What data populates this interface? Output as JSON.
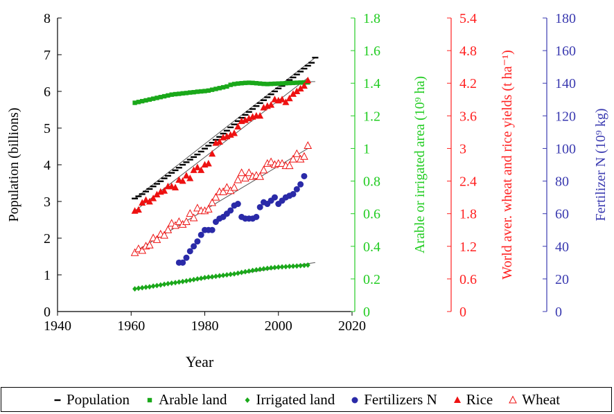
{
  "chart_data": {
    "type": "scatter",
    "xlabel": "Year",
    "xlim": [
      1940,
      2020
    ],
    "x_ticks": [
      "1940",
      "1960",
      "1980",
      "2000",
      "2020"
    ],
    "axes": [
      {
        "id": "population",
        "label": "Population (billions)",
        "color": "#000000",
        "lim": [
          0,
          8
        ],
        "ticks": [
          "0",
          "1",
          "2",
          "3",
          "4",
          "5",
          "6",
          "7",
          "8"
        ]
      },
      {
        "id": "area",
        "label": "Arable or irrigated area (10⁹ ha)",
        "color": "#22cc22",
        "lim": [
          0,
          1.8
        ],
        "ticks": [
          "0",
          "0.2",
          "0.4",
          "0.6",
          "0.8",
          "1",
          "1.2",
          "1.4",
          "1.6",
          "1.8"
        ]
      },
      {
        "id": "yield",
        "label": "World aver. wheat and rice yields (t ha⁻¹)",
        "color": "#ff2020",
        "lim": [
          0,
          5.4
        ],
        "ticks": [
          "0",
          "0.6",
          "1.2",
          "1.8",
          "2.4",
          "3",
          "3.6",
          "4.2",
          "4.8",
          "5.4"
        ]
      },
      {
        "id": "fertilizer",
        "label": "Fertilizer N (10⁹ kg)",
        "color": "#3a3ab0",
        "lim": [
          0,
          180
        ],
        "ticks": [
          "0",
          "20",
          "40",
          "60",
          "80",
          "100",
          "120",
          "140",
          "160",
          "180"
        ]
      }
    ],
    "series": [
      {
        "name": "Population",
        "axis": "population",
        "marker": "dash",
        "color": "#000000",
        "x": [
          1961,
          1962,
          1963,
          1964,
          1965,
          1966,
          1967,
          1968,
          1969,
          1970,
          1971,
          1972,
          1973,
          1974,
          1975,
          1976,
          1977,
          1978,
          1979,
          1980,
          1981,
          1982,
          1983,
          1984,
          1985,
          1986,
          1987,
          1988,
          1989,
          1990,
          1991,
          1992,
          1993,
          1994,
          1995,
          1996,
          1997,
          1998,
          1999,
          2000,
          2001,
          2002,
          2003,
          2004,
          2005,
          2006,
          2007,
          2008,
          2009,
          2010
        ],
        "values": [
          3.08,
          3.14,
          3.2,
          3.27,
          3.34,
          3.41,
          3.48,
          3.55,
          3.63,
          3.7,
          3.78,
          3.85,
          3.92,
          4.0,
          4.07,
          4.14,
          4.21,
          4.28,
          4.36,
          4.44,
          4.52,
          4.6,
          4.68,
          4.76,
          4.85,
          4.93,
          5.02,
          5.1,
          5.19,
          5.28,
          5.36,
          5.44,
          5.52,
          5.6,
          5.68,
          5.76,
          5.84,
          5.92,
          6.0,
          6.08,
          6.15,
          6.23,
          6.31,
          6.38,
          6.46,
          6.54,
          6.62,
          6.7,
          6.78,
          6.92
        ]
      },
      {
        "name": "Arable land",
        "axis": "area",
        "marker": "square",
        "color": "#1aa81a",
        "x": [
          1961,
          1962,
          1963,
          1964,
          1965,
          1966,
          1967,
          1968,
          1969,
          1970,
          1971,
          1972,
          1973,
          1974,
          1975,
          1976,
          1977,
          1978,
          1979,
          1980,
          1981,
          1982,
          1983,
          1984,
          1985,
          1986,
          1987,
          1988,
          1989,
          1990,
          1991,
          1992,
          1993,
          1994,
          1995,
          1996,
          1997,
          1998,
          1999,
          2000,
          2001,
          2002,
          2003,
          2004,
          2005,
          2006,
          2007,
          2008
        ],
        "values": [
          1.28,
          1.285,
          1.29,
          1.295,
          1.3,
          1.305,
          1.31,
          1.315,
          1.32,
          1.325,
          1.33,
          1.333,
          1.335,
          1.338,
          1.34,
          1.343,
          1.345,
          1.348,
          1.35,
          1.352,
          1.355,
          1.36,
          1.365,
          1.37,
          1.375,
          1.38,
          1.39,
          1.395,
          1.398,
          1.4,
          1.402,
          1.403,
          1.402,
          1.4,
          1.398,
          1.396,
          1.395,
          1.396,
          1.397,
          1.398,
          1.399,
          1.4,
          1.401,
          1.402,
          1.403,
          1.404,
          1.405,
          1.405
        ]
      },
      {
        "name": "Irrigated land",
        "axis": "area",
        "marker": "diamond",
        "color": "#1aa81a",
        "x": [
          1961,
          1962,
          1963,
          1964,
          1965,
          1966,
          1967,
          1968,
          1969,
          1970,
          1971,
          1972,
          1973,
          1974,
          1975,
          1976,
          1977,
          1978,
          1979,
          1980,
          1981,
          1982,
          1983,
          1984,
          1985,
          1986,
          1987,
          1988,
          1989,
          1990,
          1991,
          1992,
          1993,
          1994,
          1995,
          1996,
          1997,
          1998,
          1999,
          2000,
          2001,
          2002,
          2003,
          2004,
          2005,
          2006,
          2007,
          2008
        ],
        "values": [
          0.139,
          0.143,
          0.146,
          0.149,
          0.152,
          0.156,
          0.159,
          0.163,
          0.167,
          0.171,
          0.174,
          0.177,
          0.181,
          0.184,
          0.188,
          0.192,
          0.196,
          0.2,
          0.204,
          0.208,
          0.211,
          0.213,
          0.216,
          0.219,
          0.222,
          0.225,
          0.228,
          0.231,
          0.235,
          0.24,
          0.244,
          0.248,
          0.252,
          0.256,
          0.259,
          0.262,
          0.265,
          0.268,
          0.27,
          0.272,
          0.274,
          0.275,
          0.277,
          0.278,
          0.279,
          0.281,
          0.283,
          0.285
        ]
      },
      {
        "name": "Fertilizers N",
        "axis": "fertilizer",
        "marker": "circle",
        "color": "#2a2aa8",
        "x": [
          1973,
          1974,
          1975,
          1976,
          1977,
          1978,
          1979,
          1980,
          1981,
          1982,
          1983,
          1984,
          1985,
          1986,
          1987,
          1988,
          1989,
          1990,
          1991,
          1992,
          1993,
          1994,
          1995,
          1996,
          1997,
          1998,
          1999,
          2000,
          2001,
          2002,
          2003,
          2004,
          2005,
          2006,
          2007
        ],
        "values": [
          30,
          30,
          33,
          37,
          40,
          43,
          47,
          50,
          50,
          50,
          55,
          57,
          58,
          60,
          62,
          65,
          66,
          58,
          57,
          57,
          57,
          58,
          64,
          67,
          66,
          68,
          70,
          66,
          68,
          70,
          71,
          72,
          75,
          78,
          83
        ]
      },
      {
        "name": "Rice",
        "axis": "yield",
        "marker": "triangle",
        "color": "#ee1111",
        "x": [
          1961,
          1962,
          1963,
          1964,
          1965,
          1966,
          1967,
          1968,
          1969,
          1970,
          1971,
          1972,
          1973,
          1974,
          1975,
          1976,
          1977,
          1978,
          1979,
          1980,
          1981,
          1982,
          1983,
          1984,
          1985,
          1986,
          1987,
          1988,
          1989,
          1990,
          1991,
          1992,
          1993,
          1994,
          1995,
          1996,
          1997,
          1998,
          1999,
          2000,
          2001,
          2002,
          2003,
          2004,
          2005,
          2006,
          2007,
          2008
        ],
        "values": [
          1.85,
          1.87,
          2.0,
          2.05,
          2.02,
          2.08,
          2.15,
          2.2,
          2.22,
          2.3,
          2.3,
          2.28,
          2.42,
          2.4,
          2.5,
          2.45,
          2.6,
          2.65,
          2.6,
          2.7,
          2.72,
          2.9,
          3.1,
          3.12,
          3.2,
          3.22,
          3.25,
          3.28,
          3.4,
          3.5,
          3.52,
          3.55,
          3.58,
          3.6,
          3.6,
          3.75,
          3.78,
          3.8,
          3.9,
          3.88,
          3.9,
          3.85,
          3.92,
          4.0,
          4.05,
          4.1,
          4.15,
          4.25
        ]
      },
      {
        "name": "Wheat",
        "axis": "yield",
        "marker": "open-triangle",
        "color": "#ee1111",
        "x": [
          1961,
          1962,
          1963,
          1964,
          1965,
          1966,
          1967,
          1968,
          1969,
          1970,
          1971,
          1972,
          1973,
          1974,
          1975,
          1976,
          1977,
          1978,
          1979,
          1980,
          1981,
          1982,
          1983,
          1984,
          1985,
          1986,
          1987,
          1988,
          1989,
          1990,
          1991,
          1992,
          1993,
          1994,
          1995,
          1996,
          1997,
          1998,
          1999,
          2000,
          2001,
          2002,
          2003,
          2004,
          2005,
          2006,
          2007,
          2008
        ],
        "values": [
          1.08,
          1.15,
          1.12,
          1.2,
          1.22,
          1.35,
          1.32,
          1.42,
          1.4,
          1.5,
          1.62,
          1.58,
          1.65,
          1.6,
          1.65,
          1.8,
          1.72,
          1.9,
          1.85,
          1.85,
          1.88,
          2.0,
          2.1,
          2.2,
          2.2,
          2.28,
          2.22,
          2.28,
          2.42,
          2.55,
          2.45,
          2.55,
          2.48,
          2.5,
          2.48,
          2.6,
          2.72,
          2.75,
          2.7,
          2.72,
          2.72,
          2.68,
          2.68,
          2.8,
          2.9,
          2.8,
          2.85,
          3.05
        ]
      }
    ],
    "fit_lines": [
      {
        "axis": "population",
        "color": "#555555",
        "x": [
          1961,
          2010
        ],
        "values": [
          3.08,
          6.92
        ]
      },
      {
        "axis": "area",
        "color": "#555555",
        "x": [
          1961,
          1975,
          1990,
          2000,
          2010
        ],
        "values": [
          1.28,
          1.34,
          1.4,
          1.405,
          1.41
        ]
      },
      {
        "axis": "area",
        "color": "#555555",
        "x": [
          1961,
          2010
        ],
        "values": [
          0.139,
          0.3
        ]
      },
      {
        "axis": "yield",
        "color": "#555555",
        "x": [
          1961,
          2008
        ],
        "values": [
          1.85,
          4.3
        ]
      },
      {
        "axis": "yield",
        "color": "#555555",
        "x": [
          1961,
          2008
        ],
        "values": [
          1.1,
          3.0
        ]
      }
    ],
    "legend_position": "bottom"
  },
  "legend": [
    {
      "label": "Population",
      "marker": "dash",
      "color": "#000000"
    },
    {
      "label": "Arable land",
      "marker": "square",
      "color": "#1aa81a"
    },
    {
      "label": "Irrigated land",
      "marker": "diamond",
      "color": "#1aa81a"
    },
    {
      "label": "Fertilizers N",
      "marker": "circle",
      "color": "#2a2aa8"
    },
    {
      "label": "Rice",
      "marker": "triangle",
      "color": "#ee1111"
    },
    {
      "label": "Wheat",
      "marker": "open-triangle",
      "color": "#ee1111"
    }
  ]
}
